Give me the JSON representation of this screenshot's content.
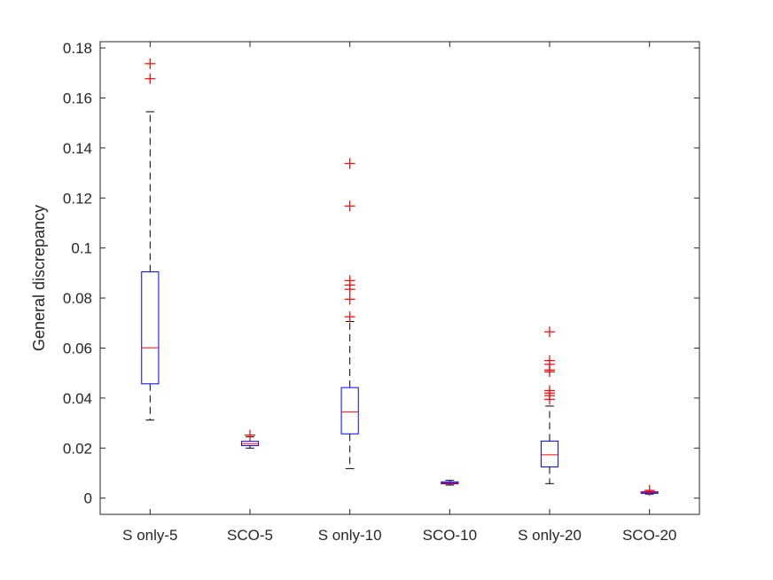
{
  "chart_data": {
    "type": "boxplot",
    "title": "",
    "xlabel": "",
    "ylabel": "General discrepancy",
    "ylim": [
      -0.0065,
      0.1825
    ],
    "yticks": [
      0,
      0.02,
      0.04,
      0.06,
      0.08,
      0.1,
      0.12,
      0.14,
      0.16,
      0.18
    ],
    "ytick_labels": [
      "0",
      "0.02",
      "0.04",
      "0.06",
      "0.08",
      "0.1",
      "0.12",
      "0.14",
      "0.16",
      "0.18"
    ],
    "grid": false,
    "categories": [
      "S only-5",
      "SCO-5",
      "S only-10",
      "SCO-10",
      "S only-20",
      "SCO-20"
    ],
    "boxes": [
      {
        "label": "S only-5",
        "whisker_low": 0.0312,
        "q1": 0.0457,
        "median": 0.0601,
        "q3": 0.0905,
        "whisker_high": 0.1545,
        "outliers": [
          0.1677,
          0.1737
        ]
      },
      {
        "label": "SCO-5",
        "whisker_low": 0.02,
        "q1": 0.021,
        "median": 0.0218,
        "q3": 0.0227,
        "whisker_high": 0.0245,
        "outliers": [
          0.0252
        ]
      },
      {
        "label": "S only-10",
        "whisker_low": 0.0118,
        "q1": 0.0257,
        "median": 0.0345,
        "q3": 0.0442,
        "whisker_high": 0.0706,
        "outliers": [
          0.0725,
          0.0795,
          0.0835,
          0.0852,
          0.087,
          0.1168,
          0.1338
        ]
      },
      {
        "label": "SCO-10",
        "whisker_low": 0.0052,
        "q1": 0.0057,
        "median": 0.0061,
        "q3": 0.0065,
        "whisker_high": 0.0071,
        "outliers": []
      },
      {
        "label": "S only-20",
        "whisker_low": 0.0058,
        "q1": 0.0125,
        "median": 0.0173,
        "q3": 0.0228,
        "whisker_high": 0.0368,
        "outliers": [
          0.0395,
          0.041,
          0.042,
          0.043,
          0.0505,
          0.0512,
          0.0535,
          0.055,
          0.0665
        ]
      },
      {
        "label": "SCO-20",
        "whisker_low": 0.0016,
        "q1": 0.0019,
        "median": 0.0022,
        "q3": 0.0025,
        "whisker_high": 0.003,
        "outliers": [
          0.0031
        ]
      }
    ],
    "colors": {
      "box": "#0000ff",
      "median": "#ff0000",
      "whisker": "#000000",
      "outlier": "#ff0000",
      "axes": "#262626"
    }
  }
}
